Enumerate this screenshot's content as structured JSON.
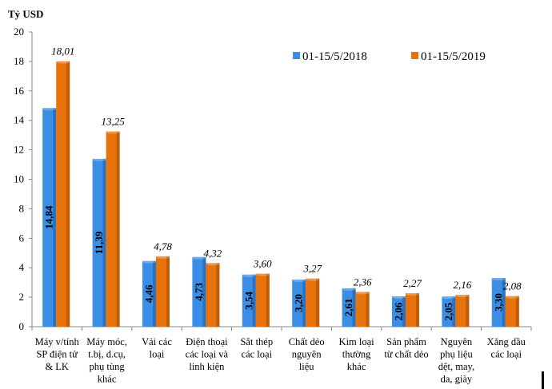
{
  "chart_data": {
    "type": "bar",
    "ylabel": "Tỷ USD",
    "ylim": [
      0,
      20
    ],
    "yticks": [
      "0",
      "2",
      "4",
      "6",
      "8",
      "10",
      "12",
      "14",
      "16",
      "18",
      "20"
    ],
    "categories": [
      [
        "Máy v/tính",
        "SP điện tử",
        "& LK"
      ],
      [
        "Máy móc,",
        "t.bị, d.cụ,",
        "phụ tùng",
        "khác"
      ],
      [
        "Vải các",
        "loại"
      ],
      [
        "Điện thoại",
        "các loại và",
        "linh kiện"
      ],
      [
        "Sắt thép",
        "các loại"
      ],
      [
        "Chất dẻo",
        "nguyên",
        "liệu"
      ],
      [
        "Kim loại",
        "thường",
        "khác"
      ],
      [
        "Sản phẩm",
        "từ chất dẻo"
      ],
      [
        "Nguyên",
        "phụ liệu",
        "dệt, may,",
        "da, giày"
      ],
      [
        "Xăng dầu",
        "các loại"
      ]
    ],
    "series": [
      {
        "name": "01-15/5/2018",
        "color": "#3b8ee6",
        "values": [
          14.84,
          11.39,
          4.46,
          4.73,
          3.54,
          3.2,
          2.61,
          2.06,
          2.05,
          3.3
        ],
        "labels": [
          "14,84",
          "11,39",
          "4,46",
          "4,73",
          "3,54",
          "3,20",
          "2,61",
          "2,06",
          "2,05",
          "3,30"
        ]
      },
      {
        "name": "01-15/5/2019",
        "color": "#e8730c",
        "values": [
          18.01,
          13.25,
          4.78,
          4.32,
          3.6,
          3.27,
          2.36,
          2.27,
          2.16,
          2.08
        ],
        "labels": [
          "18,01",
          "13,25",
          "4,78",
          "4,32",
          "3,60",
          "3,27",
          "2,36",
          "2,27",
          "2,16",
          "2,08"
        ]
      }
    ],
    "legend": "top-right",
    "grid": false
  }
}
